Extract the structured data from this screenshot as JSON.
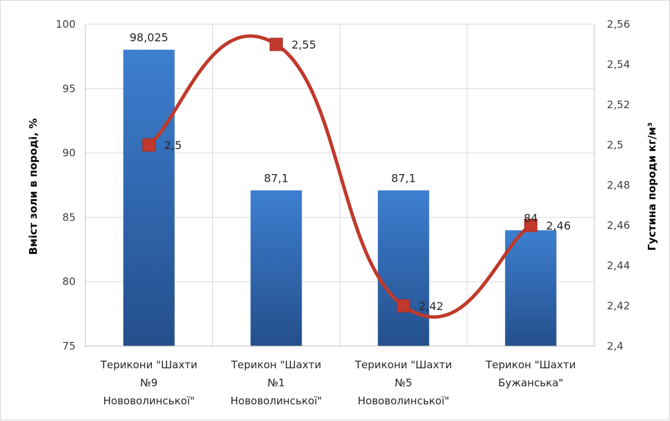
{
  "chart_data": {
    "type": "bar",
    "categories": [
      [
        "Терикони \"Шахти",
        "№9",
        "Нововолинської\""
      ],
      [
        "Терикон \"Шахти",
        "№1",
        "Нововолинської\""
      ],
      [
        "Терикони \"Шахти",
        "№5",
        "Нововолинської\""
      ],
      [
        "Терикон \"Шахти",
        "Бужанська\""
      ]
    ],
    "series": [
      {
        "type": "bar",
        "axis": "left",
        "values": [
          98.025,
          87.1,
          87.1,
          84
        ],
        "labels": [
          "98,025",
          "87,1",
          "87,1",
          "84"
        ],
        "color": "#3a77c4"
      },
      {
        "type": "line",
        "smooth": true,
        "axis": "right",
        "values": [
          2.5,
          2.55,
          2.42,
          2.46
        ],
        "labels": [
          "2,5",
          "2,55",
          "2,42",
          "2,46"
        ],
        "color": "#c0392b",
        "marker": "square"
      }
    ],
    "ylabel": "Вміст золи в породі, %",
    "ylabel_right": "Густина породи кг/м³",
    "ylim": [
      75,
      100
    ],
    "ylim_right": [
      2.4,
      2.56
    ],
    "yticks": [
      "75",
      "80",
      "85",
      "90",
      "95",
      "100"
    ],
    "yticks_right": [
      "2,4",
      "2,42",
      "2,44",
      "2,46",
      "2,48",
      "2,5",
      "2,52",
      "2,54",
      "2,56"
    ],
    "grid": true,
    "legend": "none"
  }
}
